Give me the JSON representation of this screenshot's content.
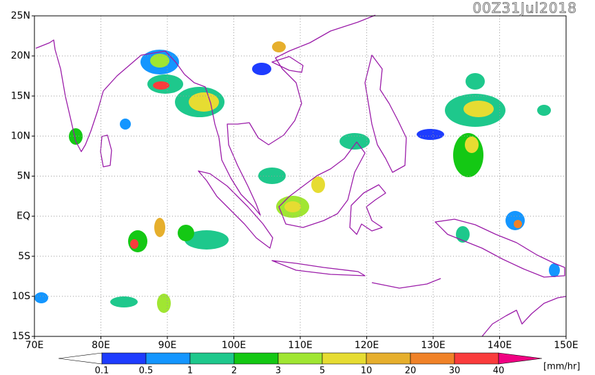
{
  "map": {
    "title": "00Z31Jul2018",
    "xlim": [
      70,
      150
    ],
    "ylim": [
      -15,
      25
    ],
    "xticks": [
      {
        "value": 70,
        "label": "70E"
      },
      {
        "value": 80,
        "label": "80E"
      },
      {
        "value": 90,
        "label": "90E"
      },
      {
        "value": 100,
        "label": "100E"
      },
      {
        "value": 110,
        "label": "110E"
      },
      {
        "value": 120,
        "label": "120E"
      },
      {
        "value": 130,
        "label": "130E"
      },
      {
        "value": 140,
        "label": "140E"
      },
      {
        "value": 150,
        "label": "150E"
      }
    ],
    "yticks": [
      {
        "value": 25,
        "label": "25N"
      },
      {
        "value": 20,
        "label": "20N"
      },
      {
        "value": 15,
        "label": "15N"
      },
      {
        "value": 10,
        "label": "10N"
      },
      {
        "value": 5,
        "label": "5N"
      },
      {
        "value": 0,
        "label": "EQ"
      },
      {
        "value": -5,
        "label": "5S"
      },
      {
        "value": -10,
        "label": "10S"
      },
      {
        "value": -15,
        "label": "15S"
      }
    ],
    "grid": true,
    "colorbar": {
      "bounds": [
        0.1,
        0.5,
        1,
        2,
        3,
        5,
        10,
        20,
        30,
        40
      ],
      "colors": [
        "#1e3cff",
        "#1496ff",
        "#1ec88c",
        "#14c814",
        "#a0e632",
        "#e6dc32",
        "#e6af2d",
        "#f08228",
        "#fa3c3c"
      ],
      "under_color": "#ffffff",
      "over_color": "#f00082",
      "unit": "[mm/hr]"
    }
  }
}
